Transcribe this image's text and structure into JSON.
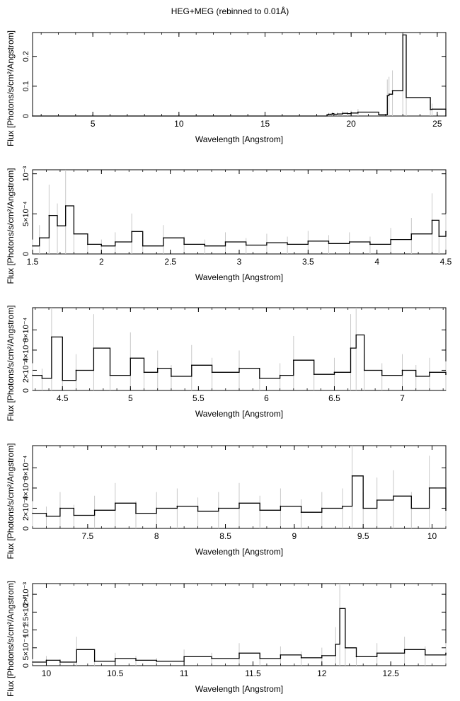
{
  "figure": {
    "title": "HEG+MEG (rebinned to 0.01Å)"
  },
  "colors": {
    "line": "#000000",
    "error_bar": "#c8c8c8",
    "frame": "#000000",
    "background": "#ffffff"
  },
  "chart_data": [
    {
      "type": "line",
      "panel": 1,
      "xlabel": "Wavelength [Angstrom]",
      "ylabel": "Flux [Photons/s/cm²/Angstrom]",
      "xlim": [
        1.5,
        25.5
      ],
      "ylim": [
        0,
        0.28
      ],
      "xticks": [
        5,
        10,
        15,
        20,
        25
      ],
      "xtick_labels": [
        "5",
        "10",
        "15",
        "20",
        "25"
      ],
      "yticks": [
        0,
        0.1,
        0.2
      ],
      "ytick_labels": [
        "0",
        "0.1",
        "0.2"
      ],
      "grid": false,
      "series": [
        {
          "x": [
            1.5,
            18.6,
            18.7,
            18.8,
            18.9,
            19.0,
            19.2,
            19.5,
            19.8,
            20.0,
            20.4,
            21.6,
            22.1,
            22.2,
            22.4,
            23.0,
            23.2,
            24.6,
            24.7,
            25.5
          ],
          "y": [
            0.0,
            0.004,
            0.006,
            0.005,
            0.008,
            0.006,
            0.007,
            0.009,
            0.008,
            0.01,
            0.013,
            0.004,
            0.068,
            0.073,
            0.085,
            0.272,
            0.062,
            0.022,
            0.023,
            0.0
          ]
        }
      ]
    },
    {
      "type": "line",
      "panel": 2,
      "xlabel": "Wavelength [Angstrom]",
      "ylabel": "Flux [Photons/s/cm²/Angstrom]",
      "xlim": [
        1.5,
        4.5
      ],
      "ylim": [
        0,
        0.00105
      ],
      "xticks": [
        1.5,
        2,
        2.5,
        3,
        3.5,
        4,
        4.5
      ],
      "xtick_labels": [
        "1.5",
        "2",
        "2.5",
        "3",
        "3.5",
        "4",
        "4.5"
      ],
      "yticks": [
        0,
        0.0005,
        0.001
      ],
      "ytick_labels": [
        "0",
        "5×10⁻⁴",
        "10⁻³"
      ],
      "grid": false,
      "series": [
        {
          "x": [
            1.5,
            1.55,
            1.62,
            1.68,
            1.74,
            1.8,
            1.9,
            2.0,
            2.1,
            2.22,
            2.3,
            2.45,
            2.6,
            2.75,
            2.9,
            3.05,
            3.2,
            3.35,
            3.5,
            3.65,
            3.8,
            3.95,
            4.1,
            4.25,
            4.4,
            4.45,
            4.5
          ],
          "y": [
            0.0001,
            0.0002,
            0.00048,
            0.00035,
            0.0006,
            0.00025,
            0.00012,
            0.0001,
            0.00015,
            0.00028,
            0.0001,
            0.0002,
            0.00012,
            0.0001,
            0.00015,
            0.00011,
            0.00014,
            0.00012,
            0.00016,
            0.00013,
            0.00015,
            0.00012,
            0.00018,
            0.00025,
            0.00042,
            0.00022,
            0.00028
          ]
        }
      ]
    },
    {
      "type": "line",
      "panel": 3,
      "xlabel": "Wavelength [Angstrom]",
      "ylabel": "Flux [Photons/s/cm²/Angstrom]",
      "xlim": [
        4.28,
        7.32
      ],
      "ylim": [
        0,
        0.00082
      ],
      "xticks": [
        4.5,
        5,
        5.5,
        6,
        6.5,
        7
      ],
      "xtick_labels": [
        "4.5",
        "5",
        "5.5",
        "6",
        "6.5",
        "7"
      ],
      "yticks": [
        0,
        0.0002,
        0.0004,
        0.0006
      ],
      "ytick_labels": [
        "0",
        "2×10⁻⁴",
        "4×10⁻⁴",
        "6×10⁻⁴"
      ],
      "grid": false,
      "series": [
        {
          "x": [
            4.28,
            4.35,
            4.42,
            4.5,
            4.6,
            4.73,
            4.85,
            5.0,
            5.1,
            5.2,
            5.3,
            5.45,
            5.6,
            5.8,
            5.95,
            6.1,
            6.2,
            6.35,
            6.5,
            6.62,
            6.66,
            6.72,
            6.85,
            7.0,
            7.1,
            7.2,
            7.32
          ],
          "y": [
            0.00015,
            0.00012,
            0.00053,
            0.0001,
            0.0002,
            0.00042,
            0.00015,
            0.00032,
            0.00018,
            0.00022,
            0.00014,
            0.00025,
            0.00018,
            0.00022,
            0.00012,
            0.00015,
            0.0003,
            0.00016,
            0.00018,
            0.00042,
            0.00055,
            0.0002,
            0.00015,
            0.0002,
            0.00014,
            0.00018,
            0.00016
          ]
        }
      ]
    },
    {
      "type": "line",
      "panel": 4,
      "xlabel": "Wavelength [Angstrom]",
      "ylabel": "Flux [Photons/s/cm²/Angstrom]",
      "xlim": [
        7.1,
        10.1
      ],
      "ylim": [
        0,
        0.00082
      ],
      "xticks": [
        7.5,
        8,
        8.5,
        9,
        9.5,
        10
      ],
      "xtick_labels": [
        "7.5",
        "8",
        "8.5",
        "9",
        "9.5",
        "10"
      ],
      "yticks": [
        0,
        0.0002,
        0.0004,
        0.0006
      ],
      "ytick_labels": [
        "0",
        "2×10⁻⁴",
        "4×10⁻⁴",
        "6×10⁻⁴"
      ],
      "grid": false,
      "series": [
        {
          "x": [
            7.1,
            7.2,
            7.3,
            7.4,
            7.55,
            7.7,
            7.85,
            8.0,
            8.15,
            8.3,
            8.45,
            8.6,
            8.75,
            8.9,
            9.05,
            9.2,
            9.35,
            9.42,
            9.5,
            9.6,
            9.72,
            9.85,
            9.98,
            10.1
          ],
          "y": [
            0.00015,
            0.00012,
            0.0002,
            0.00013,
            0.00018,
            0.00025,
            0.00015,
            0.0002,
            0.00022,
            0.00017,
            0.0002,
            0.00025,
            0.00018,
            0.00022,
            0.00016,
            0.0002,
            0.00022,
            0.00052,
            0.0002,
            0.00028,
            0.00032,
            0.0002,
            0.0004,
            0.00018
          ]
        }
      ]
    },
    {
      "type": "line",
      "panel": 5,
      "xlabel": "Wavelength [Angstrom]",
      "ylabel": "Flux [Photons/s/cm²/Angstrom]",
      "xlim": [
        9.9,
        12.9
      ],
      "ylim": [
        0,
        0.0023
      ],
      "xticks": [
        10,
        10.5,
        11,
        11.5,
        12,
        12.5
      ],
      "xtick_labels": [
        "10",
        "10.5",
        "11",
        "11.5",
        "12",
        "12.5"
      ],
      "yticks": [
        0,
        0.0005,
        0.001,
        0.0015,
        0.002
      ],
      "ytick_labels": [
        "0",
        "5×10⁻⁴",
        "10⁻³",
        "1.5×10⁻³",
        "2×10⁻³"
      ],
      "grid": false,
      "series": [
        {
          "x": [
            9.9,
            10.0,
            10.1,
            10.22,
            10.35,
            10.5,
            10.65,
            10.8,
            11.0,
            11.2,
            11.4,
            11.55,
            11.7,
            11.85,
            12.0,
            12.1,
            12.13,
            12.17,
            12.25,
            12.4,
            12.6,
            12.75,
            12.9
          ],
          "y": [
            0.0001,
            0.00015,
            0.0001,
            0.00045,
            0.00012,
            0.0002,
            0.00015,
            0.00012,
            0.00025,
            0.0002,
            0.00035,
            0.0002,
            0.0003,
            0.00022,
            0.00028,
            0.0006,
            0.0016,
            0.0005,
            0.00025,
            0.00035,
            0.00045,
            0.0003,
            0.00035
          ]
        }
      ]
    }
  ]
}
